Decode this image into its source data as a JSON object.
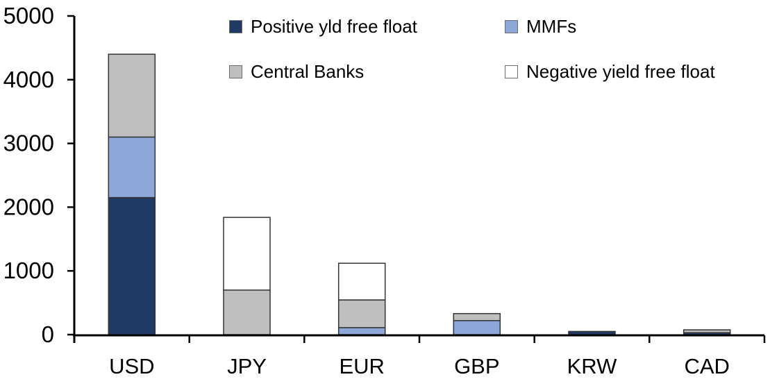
{
  "chart_data": {
    "type": "bar",
    "stacked": true,
    "title": "",
    "xlabel": "",
    "ylabel": "",
    "categories": [
      "USD",
      "JPY",
      "EUR",
      "GBP",
      "KRW",
      "CAD"
    ],
    "series": [
      {
        "name": "Positive yld free float",
        "color": "#1f3a64",
        "values": [
          2150,
          0,
          0,
          0,
          50,
          30
        ]
      },
      {
        "name": "MMFs",
        "color": "#8da8d8",
        "values": [
          950,
          0,
          110,
          220,
          0,
          0
        ]
      },
      {
        "name": "Central Banks",
        "color": "#bfbfbf",
        "values": [
          1300,
          700,
          435,
          110,
          0,
          45
        ]
      },
      {
        "name": "Negative yield free float",
        "color": "#ffffff",
        "values": [
          0,
          1140,
          575,
          0,
          0,
          0
        ]
      }
    ],
    "totals": {
      "USD": 4400,
      "JPY": 1840,
      "EUR": 1120,
      "GBP": 330,
      "KRW": 50,
      "CAD": 75
    },
    "ylim": [
      0,
      5000
    ],
    "y_ticks": [
      0,
      1000,
      2000,
      3000,
      4000,
      5000
    ],
    "grid": false,
    "legend_position": "top",
    "axis_color": "#000000",
    "segment_border_color": "#333333",
    "background_color": "#ffffff"
  }
}
